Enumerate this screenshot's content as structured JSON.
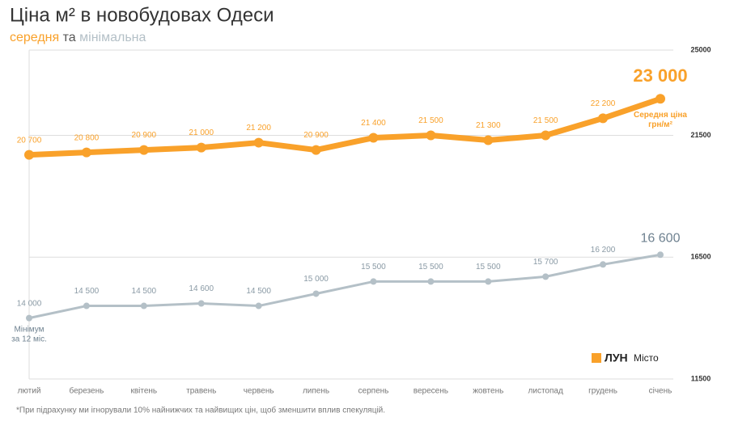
{
  "chart_data": {
    "type": "line",
    "title": "Ціна м² в новобудовах Одеси",
    "subtitle": [
      "середня",
      "та",
      "мінімальна"
    ],
    "categories": [
      "лютий",
      "березень",
      "квітень",
      "травень",
      "червень",
      "липень",
      "серпень",
      "вересень",
      "жовтень",
      "листопад",
      "грудень",
      "січень"
    ],
    "series": [
      {
        "name": "середня",
        "color": "#f9a12a",
        "values": [
          20700,
          20800,
          20900,
          21000,
          21200,
          20900,
          21400,
          21500,
          21300,
          21500,
          22200,
          23000
        ],
        "value_labels": [
          "20 700",
          "20 800",
          "20 900",
          "21 000",
          "21 200",
          "20 900",
          "21 400",
          "21 500",
          "21 300",
          "21 500",
          "22 200",
          "23 000"
        ]
      },
      {
        "name": "мінімальна",
        "color": "#b4c0c7",
        "values": [
          14000,
          14500,
          14500,
          14600,
          14500,
          15000,
          15500,
          15500,
          15500,
          15700,
          16200,
          16600
        ],
        "value_labels": [
          "14 000",
          "14 500",
          "14 500",
          "14 600",
          "14 500",
          "15 000",
          "15 500",
          "15 500",
          "15 500",
          "15 700",
          "16 200",
          "16 600"
        ]
      }
    ],
    "ylim": [
      11500,
      25000
    ],
    "yticks": [
      11500,
      16500,
      21500,
      25000
    ],
    "grid": true,
    "avg_note": [
      "Середня ціна",
      "грн/м²"
    ],
    "min_note": [
      "Мінімум",
      "за 12 міс."
    ],
    "footnote": "*При підрахунку ми ігнорували 10% найнижчих та найвищих цін, щоб зменшити вплив спекуляцій.",
    "brand": "ЛУН",
    "brand_sub": "Місто"
  }
}
